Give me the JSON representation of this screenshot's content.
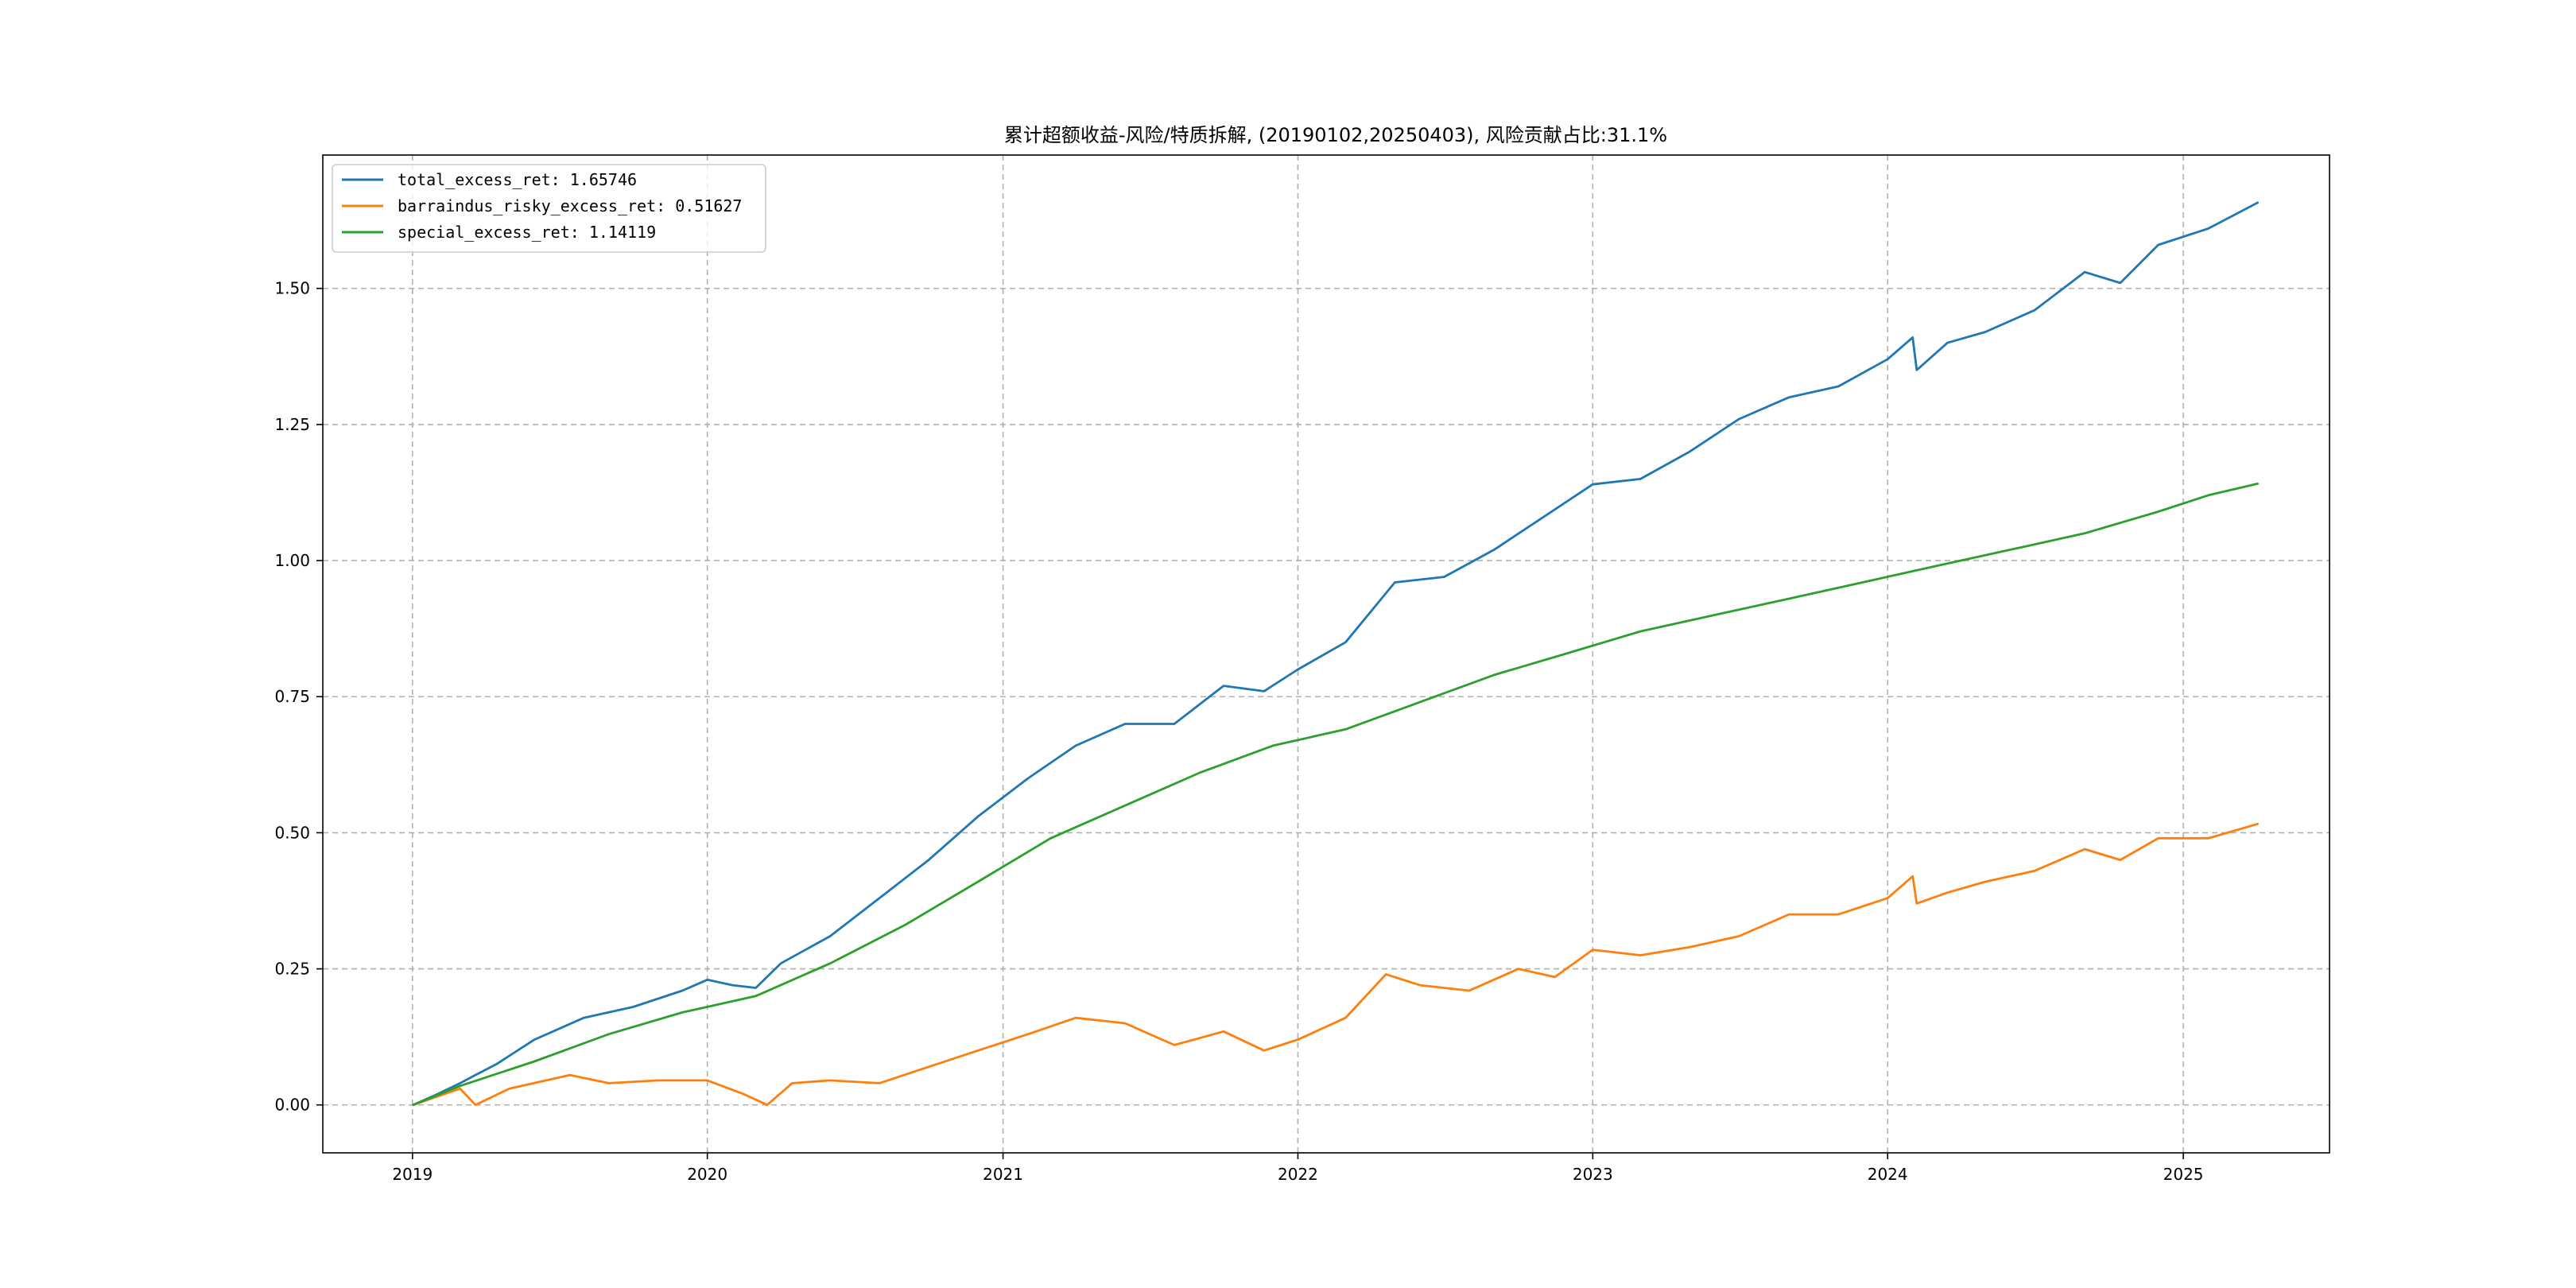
{
  "chart_data": {
    "type": "line",
    "title": "累计超额收益-风险/特质拆解, (20190102,20250403), 风险贡献占比:31.1%",
    "xlabel": "",
    "ylabel": "",
    "x_ticks": [
      "2019",
      "2020",
      "2021",
      "2022",
      "2023",
      "2024",
      "2025"
    ],
    "y_ticks": [
      "0.00",
      "0.25",
      "0.50",
      "0.75",
      "1.00",
      "1.25",
      "1.50"
    ],
    "x_range": [
      "2018-09-12",
      "2025-07-01"
    ],
    "ylim": [
      -0.088,
      1.745
    ],
    "grid": true,
    "legend_position": "top-left",
    "series": [
      {
        "name": "total_excess_ret: 1.65746",
        "color": "#1f77b4",
        "points": [
          [
            "2019-01-02",
            0.0
          ],
          [
            "2019-02-01",
            0.02
          ],
          [
            "2019-03-01",
            0.04
          ],
          [
            "2019-03-20",
            0.055
          ],
          [
            "2019-04-15",
            0.075
          ],
          [
            "2019-06-01",
            0.12
          ],
          [
            "2019-08-01",
            0.16
          ],
          [
            "2019-10-01",
            0.18
          ],
          [
            "2019-12-01",
            0.21
          ],
          [
            "2020-01-01",
            0.23
          ],
          [
            "2020-02-01",
            0.22
          ],
          [
            "2020-03-01",
            0.215
          ],
          [
            "2020-04-01",
            0.26
          ],
          [
            "2020-06-01",
            0.31
          ],
          [
            "2020-08-01",
            0.38
          ],
          [
            "2020-10-01",
            0.45
          ],
          [
            "2020-12-01",
            0.53
          ],
          [
            "2021-02-01",
            0.6
          ],
          [
            "2021-04-01",
            0.66
          ],
          [
            "2021-06-01",
            0.7
          ],
          [
            "2021-08-01",
            0.7
          ],
          [
            "2021-10-01",
            0.77
          ],
          [
            "2021-11-20",
            0.76
          ],
          [
            "2022-01-01",
            0.8
          ],
          [
            "2022-03-01",
            0.85
          ],
          [
            "2022-05-01",
            0.96
          ],
          [
            "2022-07-01",
            0.97
          ],
          [
            "2022-09-01",
            1.02
          ],
          [
            "2022-11-01",
            1.08
          ],
          [
            "2023-01-01",
            1.14
          ],
          [
            "2023-03-01",
            1.15
          ],
          [
            "2023-05-01",
            1.2
          ],
          [
            "2023-07-01",
            1.26
          ],
          [
            "2023-09-01",
            1.3
          ],
          [
            "2023-11-01",
            1.32
          ],
          [
            "2024-01-01",
            1.37
          ],
          [
            "2024-02-01",
            1.41
          ],
          [
            "2024-02-06",
            1.35
          ],
          [
            "2024-03-15",
            1.4
          ],
          [
            "2024-05-01",
            1.42
          ],
          [
            "2024-07-01",
            1.46
          ],
          [
            "2024-09-01",
            1.53
          ],
          [
            "2024-10-15",
            1.51
          ],
          [
            "2024-12-01",
            1.58
          ],
          [
            "2025-02-01",
            1.61
          ],
          [
            "2025-04-03",
            1.65746
          ]
        ]
      },
      {
        "name": "barraindus_risky_excess_ret: 0.51627",
        "color": "#ff7f0e",
        "points": [
          [
            "2019-01-02",
            0.0
          ],
          [
            "2019-03-01",
            0.03
          ],
          [
            "2019-03-20",
            0.0
          ],
          [
            "2019-05-01",
            0.03
          ],
          [
            "2019-07-15",
            0.055
          ],
          [
            "2019-09-01",
            0.04
          ],
          [
            "2019-11-01",
            0.045
          ],
          [
            "2020-01-01",
            0.045
          ],
          [
            "2020-02-15",
            0.02
          ],
          [
            "2020-03-15",
            0.0
          ],
          [
            "2020-04-15",
            0.04
          ],
          [
            "2020-06-01",
            0.045
          ],
          [
            "2020-08-01",
            0.04
          ],
          [
            "2020-10-01",
            0.07
          ],
          [
            "2020-12-01",
            0.1
          ],
          [
            "2021-02-01",
            0.13
          ],
          [
            "2021-04-01",
            0.16
          ],
          [
            "2021-06-01",
            0.15
          ],
          [
            "2021-08-01",
            0.11
          ],
          [
            "2021-10-01",
            0.135
          ],
          [
            "2021-11-20",
            0.1
          ],
          [
            "2022-01-01",
            0.12
          ],
          [
            "2022-03-01",
            0.16
          ],
          [
            "2022-04-20",
            0.24
          ],
          [
            "2022-06-01",
            0.22
          ],
          [
            "2022-08-01",
            0.21
          ],
          [
            "2022-10-01",
            0.25
          ],
          [
            "2022-11-15",
            0.235
          ],
          [
            "2023-01-01",
            0.285
          ],
          [
            "2023-03-01",
            0.275
          ],
          [
            "2023-05-01",
            0.29
          ],
          [
            "2023-07-01",
            0.31
          ],
          [
            "2023-09-01",
            0.35
          ],
          [
            "2023-11-01",
            0.35
          ],
          [
            "2024-01-01",
            0.38
          ],
          [
            "2024-02-01",
            0.42
          ],
          [
            "2024-02-06",
            0.37
          ],
          [
            "2024-03-15",
            0.39
          ],
          [
            "2024-05-01",
            0.41
          ],
          [
            "2024-07-01",
            0.43
          ],
          [
            "2024-09-01",
            0.47
          ],
          [
            "2024-10-15",
            0.45
          ],
          [
            "2024-12-01",
            0.49
          ],
          [
            "2025-02-01",
            0.49
          ],
          [
            "2025-04-03",
            0.51627
          ]
        ]
      },
      {
        "name": "special_excess_ret: 1.14119",
        "color": "#2ca02c",
        "points": [
          [
            "2019-01-02",
            0.0
          ],
          [
            "2019-03-01",
            0.035
          ],
          [
            "2019-06-01",
            0.08
          ],
          [
            "2019-09-01",
            0.13
          ],
          [
            "2019-12-01",
            0.17
          ],
          [
            "2020-03-01",
            0.2
          ],
          [
            "2020-06-01",
            0.26
          ],
          [
            "2020-09-01",
            0.33
          ],
          [
            "2020-12-01",
            0.41
          ],
          [
            "2021-03-01",
            0.49
          ],
          [
            "2021-06-01",
            0.55
          ],
          [
            "2021-09-01",
            0.61
          ],
          [
            "2021-12-01",
            0.66
          ],
          [
            "2022-03-01",
            0.69
          ],
          [
            "2022-06-01",
            0.74
          ],
          [
            "2022-09-01",
            0.79
          ],
          [
            "2022-12-01",
            0.83
          ],
          [
            "2023-03-01",
            0.87
          ],
          [
            "2023-06-01",
            0.9
          ],
          [
            "2023-09-01",
            0.93
          ],
          [
            "2023-12-01",
            0.96
          ],
          [
            "2024-03-01",
            0.99
          ],
          [
            "2024-06-01",
            1.02
          ],
          [
            "2024-09-01",
            1.05
          ],
          [
            "2024-12-01",
            1.09
          ],
          [
            "2025-02-01",
            1.12
          ],
          [
            "2025-04-03",
            1.14119
          ]
        ]
      }
    ]
  }
}
